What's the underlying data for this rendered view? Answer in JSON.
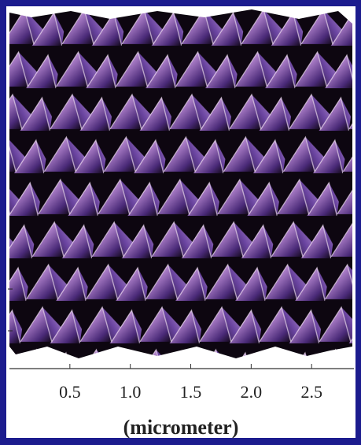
{
  "chart_data": {
    "type": "image",
    "x_label": "(micrometer)",
    "xlim": [
      0,
      2.85
    ],
    "xticks": [
      0.5,
      {
        "value": 1,
        "label": "1.0"
      },
      1.5,
      {
        "value": 2,
        "label": "2.0"
      },
      2.5
    ]
  }
}
